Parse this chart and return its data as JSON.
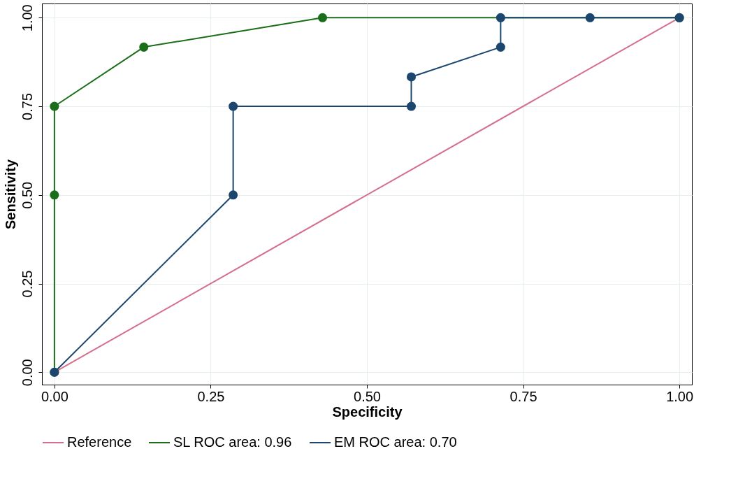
{
  "chart_data": {
    "type": "line",
    "xlabel": "Specificity",
    "ylabel": "Sensitivity",
    "xlim": [
      -0.02,
      1.02
    ],
    "ylim": [
      -0.035,
      1.04
    ],
    "xticks": [
      {
        "value": 0,
        "label": "0.00"
      },
      {
        "value": 0.25,
        "label": "0.25"
      },
      {
        "value": 0.5,
        "label": "0.50"
      },
      {
        "value": 0.75,
        "label": "0.75"
      },
      {
        "value": 1,
        "label": "1.00"
      }
    ],
    "yticks": [
      {
        "value": 0,
        "label": "0.00"
      },
      {
        "value": 0.25,
        "label": "0.25"
      },
      {
        "value": 0.5,
        "label": "0.50"
      },
      {
        "value": 0.75,
        "label": "0.75"
      },
      {
        "value": 1,
        "label": "1.00"
      }
    ],
    "grid": true,
    "legend": "bottom",
    "series": [
      {
        "name": "Reference",
        "color": "#d46f8c",
        "marker": "none",
        "x": [
          0,
          1
        ],
        "values": [
          0,
          1
        ]
      },
      {
        "name": "SL ROC area: 0.96",
        "color": "#1a6e1a",
        "marker": "circle",
        "x": [
          0,
          0,
          0,
          0.143,
          0.429,
          1
        ],
        "values": [
          0,
          0.5,
          0.75,
          0.917,
          1,
          1
        ]
      },
      {
        "name": "EM ROC area: 0.70",
        "color": "#1c466e",
        "marker": "circle",
        "x": [
          0,
          0.286,
          0.286,
          0.571,
          0.571,
          0.714,
          0.714,
          0.857,
          1
        ],
        "values": [
          0,
          0.5,
          0.75,
          0.75,
          0.833,
          0.917,
          1,
          1,
          1
        ]
      }
    ]
  }
}
